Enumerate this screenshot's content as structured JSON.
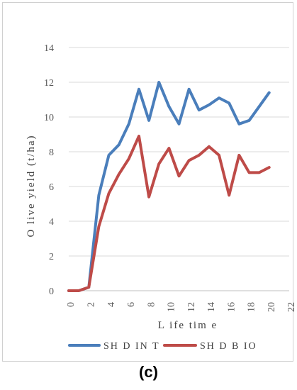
{
  "chart_data": {
    "type": "line",
    "xlabel": "L ife tim e",
    "ylabel": "O live yield (t/ha)",
    "xlim": [
      0,
      22
    ],
    "ylim": [
      0,
      14
    ],
    "x_ticks": [
      "0",
      "2",
      "4",
      "6",
      "8",
      "10",
      "12",
      "14",
      "16",
      "18",
      "20",
      "22"
    ],
    "y_ticks": [
      "0",
      "2",
      "4",
      "6",
      "8",
      "10",
      "12",
      "14"
    ],
    "grid": true,
    "legend": "bottom",
    "series": [
      {
        "name": "SH D IN T",
        "color": "#4a7ebb",
        "x": [
          0,
          1,
          2,
          3,
          4,
          5,
          6,
          7,
          8,
          9,
          10,
          11,
          12,
          13,
          14,
          15,
          16,
          17,
          18,
          19,
          20
        ],
        "y": [
          0,
          0,
          0.2,
          5.5,
          7.8,
          8.4,
          9.6,
          11.6,
          9.8,
          12.0,
          10.6,
          9.6,
          11.6,
          10.4,
          10.7,
          11.1,
          10.8,
          9.6,
          9.8,
          10.6,
          11.4
        ]
      },
      {
        "name": "SH D B IO",
        "color": "#be4b48",
        "x": [
          0,
          1,
          2,
          3,
          4,
          5,
          6,
          7,
          8,
          9,
          10,
          11,
          12,
          13,
          14,
          15,
          16,
          17,
          18,
          19,
          20
        ],
        "y": [
          0,
          0,
          0.2,
          3.7,
          5.6,
          6.7,
          7.6,
          8.9,
          5.4,
          7.3,
          8.2,
          6.6,
          7.5,
          7.8,
          8.3,
          7.8,
          5.5,
          7.8,
          6.8,
          6.8,
          7.1
        ]
      }
    ]
  },
  "caption": "(c)"
}
